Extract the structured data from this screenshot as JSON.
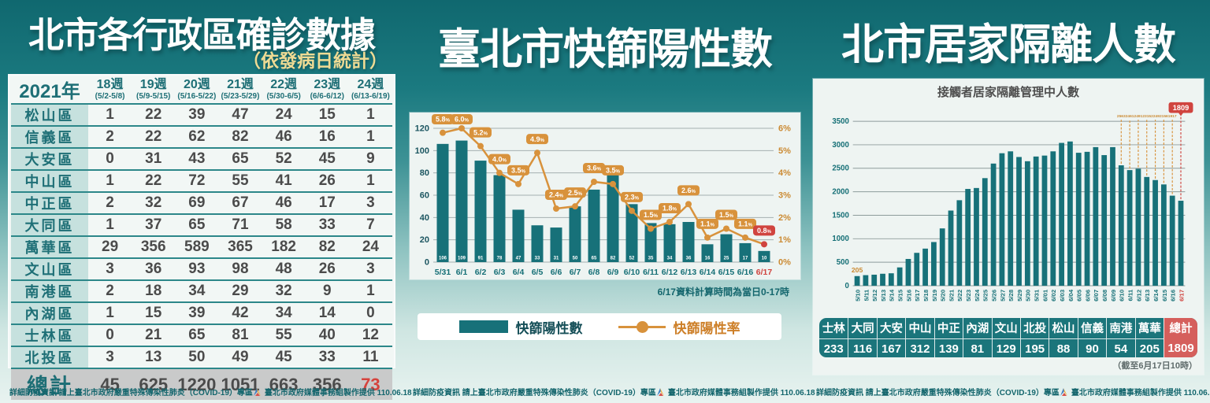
{
  "footer": {
    "info": "詳細防疫資訊 請上臺北市政府嚴重特殊傳染性肺炎（COVID-19）專區",
    "credit": "臺北市政府媒體事務組製作提供 110.06.18"
  },
  "left_panel": {
    "title": "北市各行政區確診數據",
    "subtitle": "（依發病日統計）",
    "table": {
      "year_label": "2021年",
      "week_headers": [
        {
          "week": "18週",
          "range": "(5/2-5/8)"
        },
        {
          "week": "19週",
          "range": "(5/9-5/15)"
        },
        {
          "week": "20週",
          "range": "(5/16-5/22)"
        },
        {
          "week": "21週",
          "range": "(5/23-5/29)"
        },
        {
          "week": "22週",
          "range": "(5/30-6/5)"
        },
        {
          "week": "23週",
          "range": "(6/6-6/12)"
        },
        {
          "week": "24週",
          "range": "(6/13-6/19)"
        }
      ],
      "rows": [
        {
          "district": "松山區",
          "values": [
            1,
            22,
            39,
            47,
            24,
            15,
            1
          ]
        },
        {
          "district": "信義區",
          "values": [
            2,
            22,
            62,
            82,
            46,
            16,
            1
          ]
        },
        {
          "district": "大安區",
          "values": [
            0,
            31,
            43,
            65,
            52,
            45,
            9
          ]
        },
        {
          "district": "中山區",
          "values": [
            1,
            22,
            72,
            55,
            41,
            26,
            1
          ]
        },
        {
          "district": "中正區",
          "values": [
            2,
            32,
            69,
            67,
            46,
            17,
            3
          ]
        },
        {
          "district": "大同區",
          "values": [
            1,
            37,
            65,
            71,
            58,
            33,
            7
          ]
        },
        {
          "district": "萬華區",
          "values": [
            29,
            356,
            589,
            365,
            182,
            82,
            24
          ]
        },
        {
          "district": "文山區",
          "values": [
            3,
            36,
            93,
            98,
            48,
            26,
            3
          ]
        },
        {
          "district": "南港區",
          "values": [
            2,
            18,
            34,
            29,
            32,
            9,
            1
          ]
        },
        {
          "district": "內湖區",
          "values": [
            1,
            15,
            39,
            42,
            34,
            14,
            0
          ]
        },
        {
          "district": "士林區",
          "values": [
            0,
            21,
            65,
            81,
            55,
            40,
            12
          ]
        },
        {
          "district": "北投區",
          "values": [
            3,
            13,
            50,
            49,
            45,
            33,
            11
          ]
        }
      ],
      "total": {
        "label": "總計",
        "values": [
          45,
          625,
          1220,
          1051,
          663,
          356,
          73
        ],
        "highlight_last": true
      }
    }
  },
  "middle_panel": {
    "title": "臺北市快篩陽性數"
  },
  "right_panel": {
    "title": "北市居家隔離人數",
    "note": "（截至6月17日10時）",
    "table": {
      "headers": [
        "士林",
        "大同",
        "大安",
        "中山",
        "中正",
        "內湖",
        "文山",
        "北投",
        "松山",
        "信義",
        "南港",
        "萬華",
        "總計"
      ],
      "values": [
        233,
        116,
        167,
        312,
        139,
        81,
        129,
        195,
        88,
        90,
        54,
        205,
        1809
      ]
    }
  },
  "chart_data": [
    {
      "id": "rapid-test-positives",
      "type": "bar+line",
      "title": "臺北市快篩陽性數",
      "note": "6/17資料計算時間為當日0-17時",
      "categories": [
        "5/31",
        "6/1",
        "6/2",
        "6/3",
        "6/4",
        "6/5",
        "6/6",
        "6/7",
        "6/8",
        "6/9",
        "6/10",
        "6/11",
        "6/12",
        "6/13",
        "6/14",
        "6/15",
        "6/16",
        "6/17"
      ],
      "series": [
        {
          "name": "快篩陽性數",
          "type": "bar",
          "values": [
            106,
            109,
            91,
            78,
            47,
            33,
            31,
            50,
            65,
            82,
            52,
            35,
            34,
            36,
            16,
            25,
            17,
            10
          ]
        },
        {
          "name": "快篩陽性率",
          "type": "line",
          "unit": "%",
          "values": [
            5.8,
            6.0,
            5.2,
            4.0,
            3.5,
            4.9,
            2.4,
            2.5,
            3.6,
            3.5,
            2.3,
            1.5,
            1.8,
            2.6,
            1.1,
            1.5,
            1.1,
            0.8
          ]
        }
      ],
      "y_left": {
        "min": 0,
        "max": 120,
        "step": 20
      },
      "y_right": {
        "min": 0,
        "max": 6,
        "step": 1,
        "suffix": "%"
      },
      "legend_position": "bottom",
      "grid": true,
      "highlight_last_category": true
    },
    {
      "id": "home-isolation",
      "type": "bar",
      "title": "接觸者居家隔離管理中人數",
      "categories": [
        "5/10",
        "5/11",
        "5/12",
        "5/13",
        "5/14",
        "5/15",
        "5/16",
        "5/17",
        "5/18",
        "5/19",
        "5/20",
        "5/21",
        "5/22",
        "5/23",
        "5/24",
        "5/25",
        "5/26",
        "5/27",
        "5/28",
        "5/29",
        "5/30",
        "5/31",
        "6/01",
        "6/02",
        "6/03",
        "6/04",
        "6/05",
        "6/06",
        "6/07",
        "6/08",
        "6/09",
        "6/10",
        "6/11",
        "6/12",
        "6/13",
        "6/14",
        "6/15",
        "6/16",
        "6/17"
      ],
      "values": [
        205,
        225,
        235,
        255,
        265,
        390,
        570,
        700,
        790,
        930,
        1220,
        1600,
        1820,
        2060,
        2080,
        2290,
        2600,
        2820,
        2860,
        2740,
        2650,
        2750,
        2770,
        2860,
        3040,
        3070,
        2830,
        2850,
        2950,
        2780,
        2950,
        2563,
        2461,
        2491,
        2315,
        2249,
        2156,
        1917,
        1809
      ],
      "first_bar_label": "205",
      "callout_last_n": 8,
      "callout_values": [
        2563,
        2461,
        2491,
        2315,
        2249,
        2156,
        1917
      ],
      "final_badge": "1809",
      "ylabel": "",
      "xlabel": "",
      "ylim": [
        0,
        3500
      ],
      "ystep": 500,
      "grid": true,
      "highlight_last_category": true
    }
  ],
  "colors": {
    "teal_bar": "#177179",
    "teal_text": "#156f76",
    "axis_dark": "#1b5560",
    "orange": "#d8923c",
    "orange_text": "#cb8a33",
    "red": "#d0443f",
    "grid": "#a4b0b0",
    "bar_value_text": "#ffffff",
    "total_red_bg": "#d55f5c",
    "subtitle_yellow": "#efdb94"
  }
}
